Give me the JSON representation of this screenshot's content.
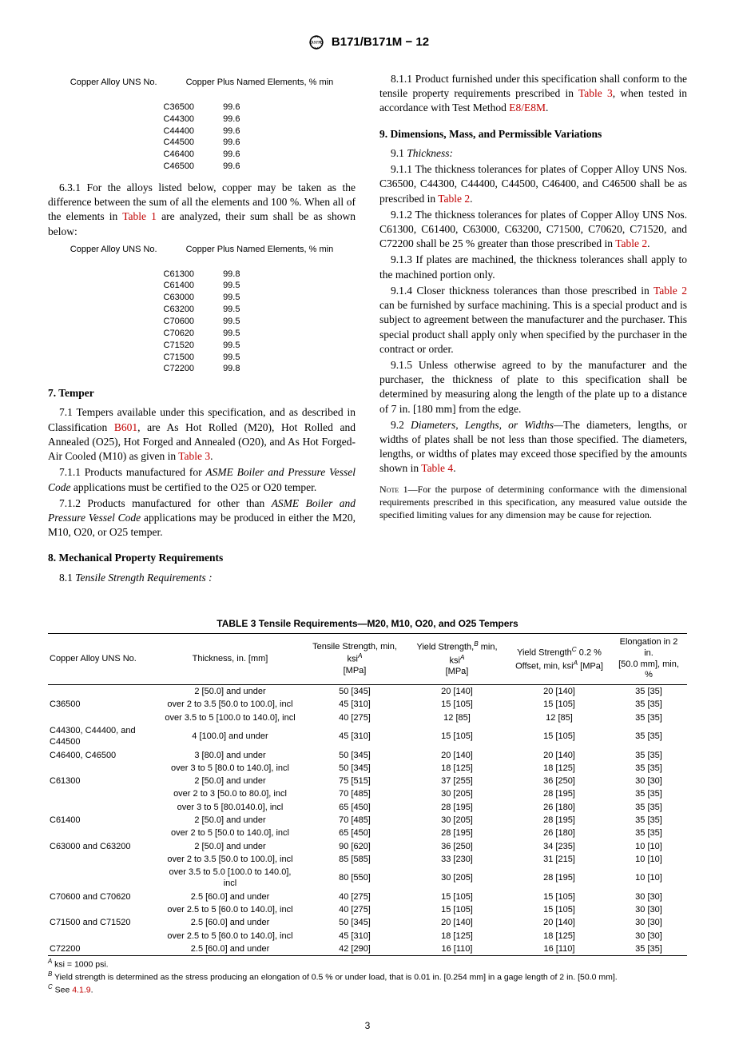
{
  "header": "B171/B171M − 12",
  "pagenum": "3",
  "left": {
    "table1": {
      "h1": "Copper Alloy UNS No.",
      "h2": "Copper Plus Named Elements, % min",
      "rows": [
        [
          "C36500",
          "99.6"
        ],
        [
          "C44300",
          "99.6"
        ],
        [
          "C44400",
          "99.6"
        ],
        [
          "C44500",
          "99.6"
        ],
        [
          "C46400",
          "99.6"
        ],
        [
          "C46500",
          "99.6"
        ]
      ]
    },
    "p631a": "6.3.1 For the alloys listed below, copper may be taken as the difference between the sum of all the elements and 100 %. When all of the elements in ",
    "p631_ref": "Table 1",
    "p631b": " are analyzed, their sum shall be as shown below:",
    "table2": {
      "h1": "Copper Alloy UNS No.",
      "h2": "Copper Plus Named Elements, % min",
      "rows": [
        [
          "C61300",
          "99.8"
        ],
        [
          "C61400",
          "99.5"
        ],
        [
          "C63000",
          "99.5"
        ],
        [
          "C63200",
          "99.5"
        ],
        [
          "C70600",
          "99.5"
        ],
        [
          "C70620",
          "99.5"
        ],
        [
          "C71520",
          "99.5"
        ],
        [
          "C71500",
          "99.5"
        ],
        [
          "C72200",
          "99.8"
        ]
      ]
    },
    "s7_title": "7.  Temper",
    "p71a": "7.1 Tempers available under this specification, and as described in Classification ",
    "p71_ref1": "B601",
    "p71b": ", are As Hot Rolled (M20), Hot Rolled and Annealed (O25), Hot Forged and Annealed (O20), and As Hot Forged-Air Cooled (M10) as given in ",
    "p71_ref2": "Table 3",
    "p71c": ".",
    "p711a": "7.1.1 Products manufactured for ",
    "p711_it": "ASME Boiler and Pressure Vessel Code",
    "p711b": " applications must be certified to the O25 or O20 temper.",
    "p712a": "7.1.2 Products manufactured for other than ",
    "p712_it": "ASME Boiler and Pressure Vessel Code",
    "p712b": " applications may be produced in either the M20, M10, O20, or O25 temper.",
    "s8_title": "8.  Mechanical Property Requirements",
    "p81": "8.1 ",
    "p81_it": "Tensile Strength Requirements :"
  },
  "right": {
    "p811a": "8.1.1 Product furnished under this specification shall conform to the tensile property requirements prescribed in ",
    "p811_ref1": "Table 3",
    "p811b": ", when tested in accordance with Test Method ",
    "p811_ref2": "E8/E8M",
    "p811c": ".",
    "s9_title": "9.  Dimensions, Mass, and Permissible Variations",
    "p91": "9.1 ",
    "p91_it": "Thickness:",
    "p911a": "9.1.1 The thickness tolerances for plates of Copper Alloy UNS Nos. C36500, C44300, C44400, C44500, C46400, and C46500 shall be as prescribed in ",
    "p911_ref": "Table 2",
    "p911b": ".",
    "p912a": "9.1.2 The thickness tolerances for plates of Copper Alloy UNS Nos. C61300, C61400, C63000, C63200, C71500, C70620, C71520, and C72200 shall be 25 % greater than those prescribed in ",
    "p912_ref": "Table 2",
    "p912b": ".",
    "p913": "9.1.3 If plates are machined, the thickness tolerances shall apply to the machined portion only.",
    "p914a": "9.1.4 Closer thickness tolerances than those prescribed in ",
    "p914_ref": "Table 2",
    "p914b": " can be furnished by surface machining. This is a special product and is subject to agreement between the manufacturer and the purchaser. This special product shall apply only when specified by the purchaser in the contract or order.",
    "p915": "9.1.5 Unless otherwise agreed to by the manufacturer and the purchaser, the thickness of plate to this specification shall be determined by measuring along the length of the plate up to a distance of 7 in. [180 mm] from the edge.",
    "p92": "9.2 ",
    "p92_it": "Diameters, Lengths, or Widths—",
    "p92b": "The diameters, lengths, or widths of plates shall be not less than those specified. The diameters, lengths, or widths of plates may exceed those specified by the amounts shown in ",
    "p92_ref": "Table 4",
    "p92c": ".",
    "note1_lead": "Note 1—",
    "note1": "For the purpose of determining conformance with the dimensional requirements prescribed in this specification, any measured value outside the specified limiting values for any dimension may be cause for rejection."
  },
  "big_table": {
    "title": "TABLE 3 Tensile Requirements—M20, M10, O20, and O25 Tempers",
    "headers": {
      "c1": "Copper Alloy UNS No.",
      "c2": "Thickness, in. [mm]",
      "c3a": "Tensile Strength, min, ksi",
      "c3b": "[MPa]",
      "c4a": "Yield Strength,",
      "c4b": " min, ksi",
      "c4c": "[MPa]",
      "c5a": "Yield Strength",
      "c5b": " 0.2 % Offset, min, ksi",
      "c5c": " [MPa]",
      "c6a": "Elongation in 2 in.",
      "c6b": "[50.0 mm], min, %"
    },
    "rows": [
      {
        "alloy": "",
        "t": "2 [50.0] and under",
        "ts": "50 [345]",
        "ys": "20 [140]",
        "yo": "20 [140]",
        "el": "35 [35]"
      },
      {
        "alloy": "C36500",
        "t": "over 2 to 3.5 [50.0 to 100.0], incl",
        "ts": "45 [310]",
        "ys": "15 [105]",
        "yo": "15 [105]",
        "el": "35 [35]"
      },
      {
        "alloy": "",
        "t": "over 3.5 to 5 [100.0 to 140.0], incl",
        "ts": "40 [275]",
        "ys": "12 [85]",
        "yo": "12 [85]",
        "el": "35 [35]"
      },
      {
        "alloy": "C44300, C44400, and C44500",
        "t": "4 [100.0] and under",
        "ts": "45 [310]",
        "ys": "15 [105]",
        "yo": "15 [105]",
        "el": "35 [35]"
      },
      {
        "alloy": "C46400, C46500",
        "t": "3 [80.0] and under",
        "ts": "50 [345]",
        "ys": "20 [140]",
        "yo": "20 [140]",
        "el": "35 [35]"
      },
      {
        "alloy": "",
        "t": "over 3 to 5 [80.0 to 140.0], incl",
        "ts": "50 [345]",
        "ys": "18 [125]",
        "yo": "18 [125]",
        "el": "35 [35]"
      },
      {
        "alloy": "C61300",
        "t": "2 [50.0] and under",
        "ts": "75 [515]",
        "ys": "37 [255]",
        "yo": "36 [250]",
        "el": "30 [30]"
      },
      {
        "alloy": "",
        "t": "over 2 to 3 [50.0 to 80.0], incl",
        "ts": "70 [485]",
        "ys": "30 [205]",
        "yo": "28 [195]",
        "el": "35 [35]"
      },
      {
        "alloy": "",
        "t": "over 3 to 5 [80.0140.0], incl",
        "ts": "65 [450]",
        "ys": "28 [195]",
        "yo": "26 [180]",
        "el": "35 [35]"
      },
      {
        "alloy": "C61400",
        "t": "2 [50.0] and under",
        "ts": "70 [485]",
        "ys": "30 [205]",
        "yo": "28 [195]",
        "el": "35 [35]"
      },
      {
        "alloy": "",
        "t": "over 2 to 5 [50.0 to 140.0], incl",
        "ts": "65 [450]",
        "ys": "28 [195]",
        "yo": "26 [180]",
        "el": "35 [35]"
      },
      {
        "alloy": "C63000 and C63200",
        "t": "2 [50.0] and under",
        "ts": "90 [620]",
        "ys": "36 [250]",
        "yo": "34 [235]",
        "el": "10 [10]"
      },
      {
        "alloy": "",
        "t": "over 2 to 3.5 [50.0 to 100.0], incl",
        "ts": "85 [585]",
        "ys": "33 [230]",
        "yo": "31 [215]",
        "el": "10 [10]"
      },
      {
        "alloy": "",
        "t": "over 3.5 to 5.0 [100.0 to 140.0], incl",
        "ts": "80 [550]",
        "ys": "30 [205]",
        "yo": "28 [195]",
        "el": "10 [10]"
      },
      {
        "alloy": "C70600 and C70620",
        "t": "2.5 [60.0] and under",
        "ts": "40 [275]",
        "ys": "15 [105]",
        "yo": "15 [105]",
        "el": "30 [30]"
      },
      {
        "alloy": "",
        "t": "over 2.5 to 5 [60.0 to 140.0], incl",
        "ts": "40 [275]",
        "ys": "15 [105]",
        "yo": "15 [105]",
        "el": "30 [30]"
      },
      {
        "alloy": "C71500 and C71520",
        "t": "2.5 [60.0] and under",
        "ts": "50 [345]",
        "ys": "20 [140]",
        "yo": "20 [140]",
        "el": "30 [30]"
      },
      {
        "alloy": "",
        "t": "over 2.5 to 5 [60.0 to 140.0], incl",
        "ts": "45 [310]",
        "ys": "18 [125]",
        "yo": "18 [125]",
        "el": "30 [30]"
      },
      {
        "alloy": "C72200",
        "t": "2.5 [60.0] and under",
        "ts": "42 [290]",
        "ys": "16 [110]",
        "yo": "16 [110]",
        "el": "35 [35]"
      }
    ],
    "footA": " ksi = 1000 psi.",
    "footB": " Yield strength is determined as the stress producing an elongation of 0.5 % or under load, that is 0.01 in. [0.254 mm] in a gage length of 2 in. [50.0 mm].",
    "footC": " See ",
    "footC_ref": "4.1.9",
    "footC_end": "."
  }
}
